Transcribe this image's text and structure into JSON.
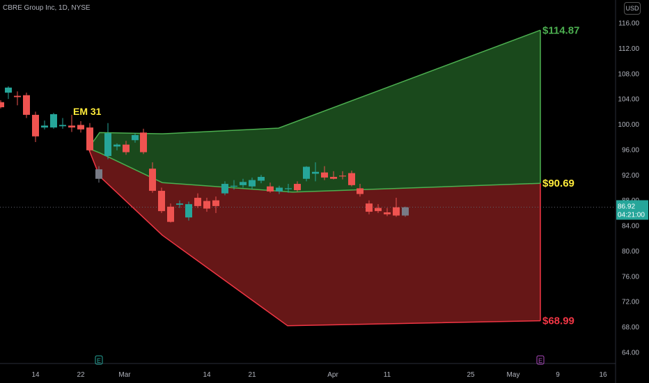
{
  "header": {
    "symbol": "CBRE Group Inc, 1D, NYSE",
    "currency": "USD"
  },
  "colors": {
    "up": "#26a69a",
    "down": "#ef5350",
    "neutral": "#787b86",
    "upper_band_fill": "#1b4d1e",
    "upper_band_line": "#4caf50",
    "lower_band_fill": "#6b1818",
    "lower_band_line": "#f23645",
    "label_green": "#4caf50",
    "label_yellow": "#ffeb3b",
    "label_red": "#f23645",
    "price_badge": "#26a69a"
  },
  "chart_data": {
    "type": "candlestick",
    "title": "CBRE Group Inc, 1D, NYSE",
    "y_ticks": [
      116,
      112,
      108,
      104,
      100,
      96,
      92,
      88,
      84,
      80,
      76,
      72,
      68,
      64
    ],
    "ylim": [
      62,
      118
    ],
    "x_ticks": [
      "14",
      "22",
      "Mar",
      "14",
      "21",
      "Apr",
      "11",
      "25",
      "May",
      "9",
      "16"
    ],
    "last_price": {
      "value": "86.92",
      "countdown": "04:21:00"
    },
    "annotations": {
      "em_label": "EM 31",
      "upper_target": "$114.87",
      "mid_target": "$90.69",
      "lower_target": "$68.99"
    },
    "earnings_markers": [
      "E",
      "E"
    ],
    "upper_band": {
      "top": [
        [
          127,
          96.2
        ],
        [
          143,
          98.7
        ],
        [
          233,
          98.5
        ],
        [
          400,
          99.4
        ],
        [
          776,
          114.87
        ]
      ],
      "bottom": [
        [
          127,
          96.2
        ],
        [
          143,
          95.5
        ],
        [
          233,
          90.8
        ],
        [
          420,
          89.3
        ],
        [
          776,
          90.69
        ]
      ]
    },
    "lower_band": {
      "top": [
        [
          127,
          96.2
        ],
        [
          143,
          95.5
        ],
        [
          233,
          90.8
        ],
        [
          420,
          89.3
        ],
        [
          776,
          90.69
        ]
      ],
      "bottom": [
        [
          127,
          96.2
        ],
        [
          143,
          91.8
        ],
        [
          233,
          82.5
        ],
        [
          413,
          68.2
        ],
        [
          776,
          68.99
        ]
      ]
    },
    "candles": [
      {
        "x": 1,
        "o": 103.5,
        "h": 103.8,
        "l": 102.5,
        "c": 102.7
      },
      {
        "x": 12,
        "o": 105.0,
        "h": 106.0,
        "l": 104.0,
        "c": 105.8
      },
      {
        "x": 25,
        "o": 104.5,
        "h": 105.2,
        "l": 103.0,
        "c": 104.3
      },
      {
        "x": 38,
        "o": 104.6,
        "h": 105.0,
        "l": 101.0,
        "c": 101.5
      },
      {
        "x": 51,
        "o": 101.5,
        "h": 102.0,
        "l": 97.2,
        "c": 98.1
      },
      {
        "x": 64,
        "o": 99.5,
        "h": 100.6,
        "l": 99.2,
        "c": 99.8
      },
      {
        "x": 77,
        "o": 99.5,
        "h": 101.8,
        "l": 99.3,
        "c": 101.6
      },
      {
        "x": 90,
        "o": 99.7,
        "h": 101.0,
        "l": 99.3,
        "c": 99.9
      },
      {
        "x": 103,
        "o": 99.8,
        "h": 101.5,
        "l": 98.8,
        "c": 99.5
      },
      {
        "x": 116,
        "o": 99.9,
        "h": 100.5,
        "l": 98.7,
        "c": 99.2
      },
      {
        "x": 129,
        "o": 99.5,
        "h": 100.2,
        "l": 95.6,
        "c": 95.9
      },
      {
        "x": 142,
        "o": 92.9,
        "h": 93.4,
        "l": 90.8,
        "c": 91.4
      },
      {
        "x": 155,
        "o": 95.0,
        "h": 100.2,
        "l": 94.5,
        "c": 98.6
      },
      {
        "x": 168,
        "o": 96.5,
        "h": 97.0,
        "l": 95.9,
        "c": 96.8
      },
      {
        "x": 181,
        "o": 96.8,
        "h": 97.4,
        "l": 95.2,
        "c": 95.6
      },
      {
        "x": 194,
        "o": 97.5,
        "h": 98.6,
        "l": 97.1,
        "c": 98.3
      },
      {
        "x": 206,
        "o": 98.7,
        "h": 99.3,
        "l": 95.3,
        "c": 95.6
      },
      {
        "x": 219,
        "o": 93.0,
        "h": 94.0,
        "l": 89.2,
        "c": 89.5
      },
      {
        "x": 232,
        "o": 89.5,
        "h": 90.0,
        "l": 86.0,
        "c": 86.3
      },
      {
        "x": 245,
        "o": 87.0,
        "h": 87.5,
        "l": 84.5,
        "c": 84.6
      },
      {
        "x": 258,
        "o": 87.3,
        "h": 88.0,
        "l": 86.8,
        "c": 87.5
      },
      {
        "x": 271,
        "o": 85.3,
        "h": 87.8,
        "l": 84.8,
        "c": 87.4
      },
      {
        "x": 284,
        "o": 88.4,
        "h": 89.1,
        "l": 86.8,
        "c": 87.1
      },
      {
        "x": 297,
        "o": 87.9,
        "h": 88.4,
        "l": 86.2,
        "c": 86.7
      },
      {
        "x": 310,
        "o": 88.0,
        "h": 88.6,
        "l": 86.0,
        "c": 87.1
      },
      {
        "x": 323,
        "o": 89.1,
        "h": 91.0,
        "l": 88.8,
        "c": 90.6
      },
      {
        "x": 336,
        "o": 90.2,
        "h": 91.2,
        "l": 89.7,
        "c": 90.3
      },
      {
        "x": 349,
        "o": 90.4,
        "h": 91.4,
        "l": 90.0,
        "c": 90.9
      },
      {
        "x": 362,
        "o": 90.2,
        "h": 91.6,
        "l": 89.8,
        "c": 91.2
      },
      {
        "x": 375,
        "o": 91.1,
        "h": 92.0,
        "l": 90.7,
        "c": 91.7
      },
      {
        "x": 388,
        "o": 90.2,
        "h": 90.8,
        "l": 89.2,
        "c": 89.4
      },
      {
        "x": 401,
        "o": 89.4,
        "h": 90.3,
        "l": 89.0,
        "c": 90.0
      },
      {
        "x": 414,
        "o": 89.8,
        "h": 90.6,
        "l": 89.2,
        "c": 89.9
      },
      {
        "x": 427,
        "o": 90.6,
        "h": 91.0,
        "l": 89.4,
        "c": 89.6
      },
      {
        "x": 440,
        "o": 91.4,
        "h": 93.4,
        "l": 91.0,
        "c": 93.3
      },
      {
        "x": 453,
        "o": 92.2,
        "h": 94.0,
        "l": 91.0,
        "c": 92.5
      },
      {
        "x": 466,
        "o": 92.4,
        "h": 93.4,
        "l": 91.2,
        "c": 91.6
      },
      {
        "x": 479,
        "o": 91.7,
        "h": 92.6,
        "l": 91.3,
        "c": 91.4
      },
      {
        "x": 492,
        "o": 91.9,
        "h": 92.6,
        "l": 91.3,
        "c": 91.8
      },
      {
        "x": 505,
        "o": 92.3,
        "h": 92.7,
        "l": 90.2,
        "c": 90.4
      },
      {
        "x": 517,
        "o": 89.9,
        "h": 90.6,
        "l": 88.6,
        "c": 89.0
      },
      {
        "x": 530,
        "o": 87.5,
        "h": 88.0,
        "l": 85.8,
        "c": 86.2
      },
      {
        "x": 543,
        "o": 86.8,
        "h": 87.4,
        "l": 86.0,
        "c": 86.3
      },
      {
        "x": 556,
        "o": 86.1,
        "h": 86.8,
        "l": 85.5,
        "c": 85.8
      },
      {
        "x": 569,
        "o": 86.9,
        "h": 88.4,
        "l": 85.4,
        "c": 85.6
      },
      {
        "x": 582,
        "o": 86.9,
        "h": 87.0,
        "l": 85.4,
        "c": 85.6
      }
    ]
  }
}
